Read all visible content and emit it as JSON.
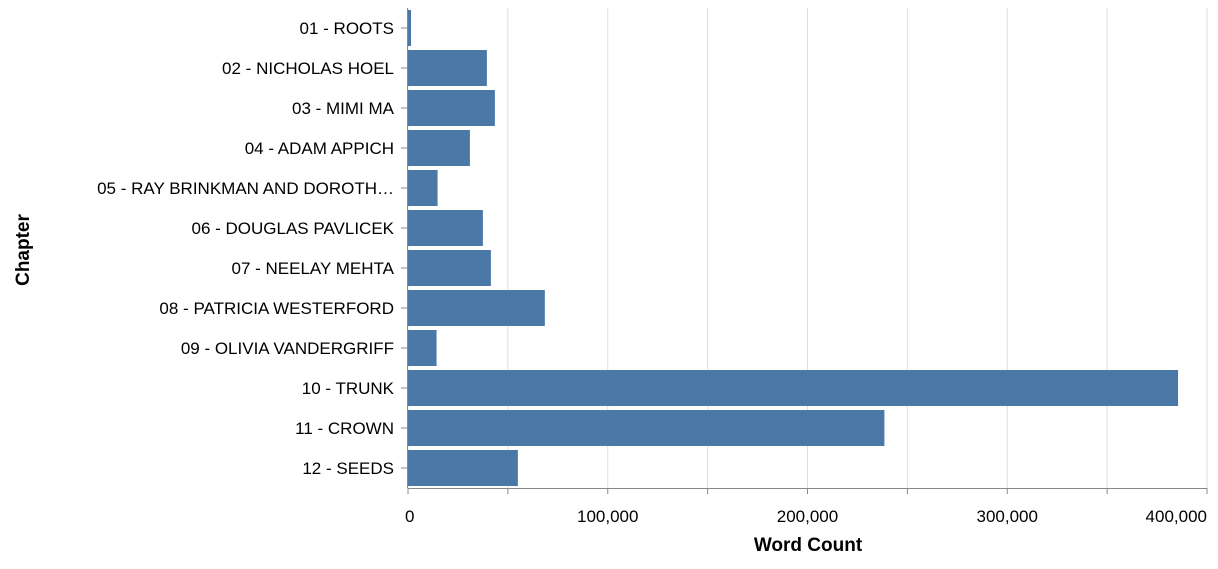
{
  "chart_data": {
    "type": "bar",
    "orientation": "horizontal",
    "categories": [
      "01 - ROOTS",
      "02 - NICHOLAS HOEL",
      "03 - MIMI MA",
      "04 - ADAM APPICH",
      "05 - RAY BRINKMAN AND DOROTH…",
      "06 - DOUGLAS PAVLICEK",
      "07 - NEELAY MEHTA",
      "08 - PATRICIA WESTERFORD",
      "09 - OLIVIA VANDERGRIFF",
      "10 - TRUNK",
      "11 - CROWN",
      "12 - SEEDS"
    ],
    "values": [
      1500,
      39500,
      43500,
      31000,
      14800,
      37500,
      41500,
      68500,
      14300,
      385500,
      238500,
      55000
    ],
    "xlabel": "Word Count",
    "ylabel": "Chapter",
    "xlim": [
      0,
      400000
    ],
    "x_ticks": [
      0,
      100000,
      200000,
      300000,
      400000
    ],
    "x_tick_labels": [
      "0",
      "100,000",
      "200,000",
      "300,000",
      "400,000"
    ],
    "grid": true,
    "bar_color": "#4c78a8"
  }
}
